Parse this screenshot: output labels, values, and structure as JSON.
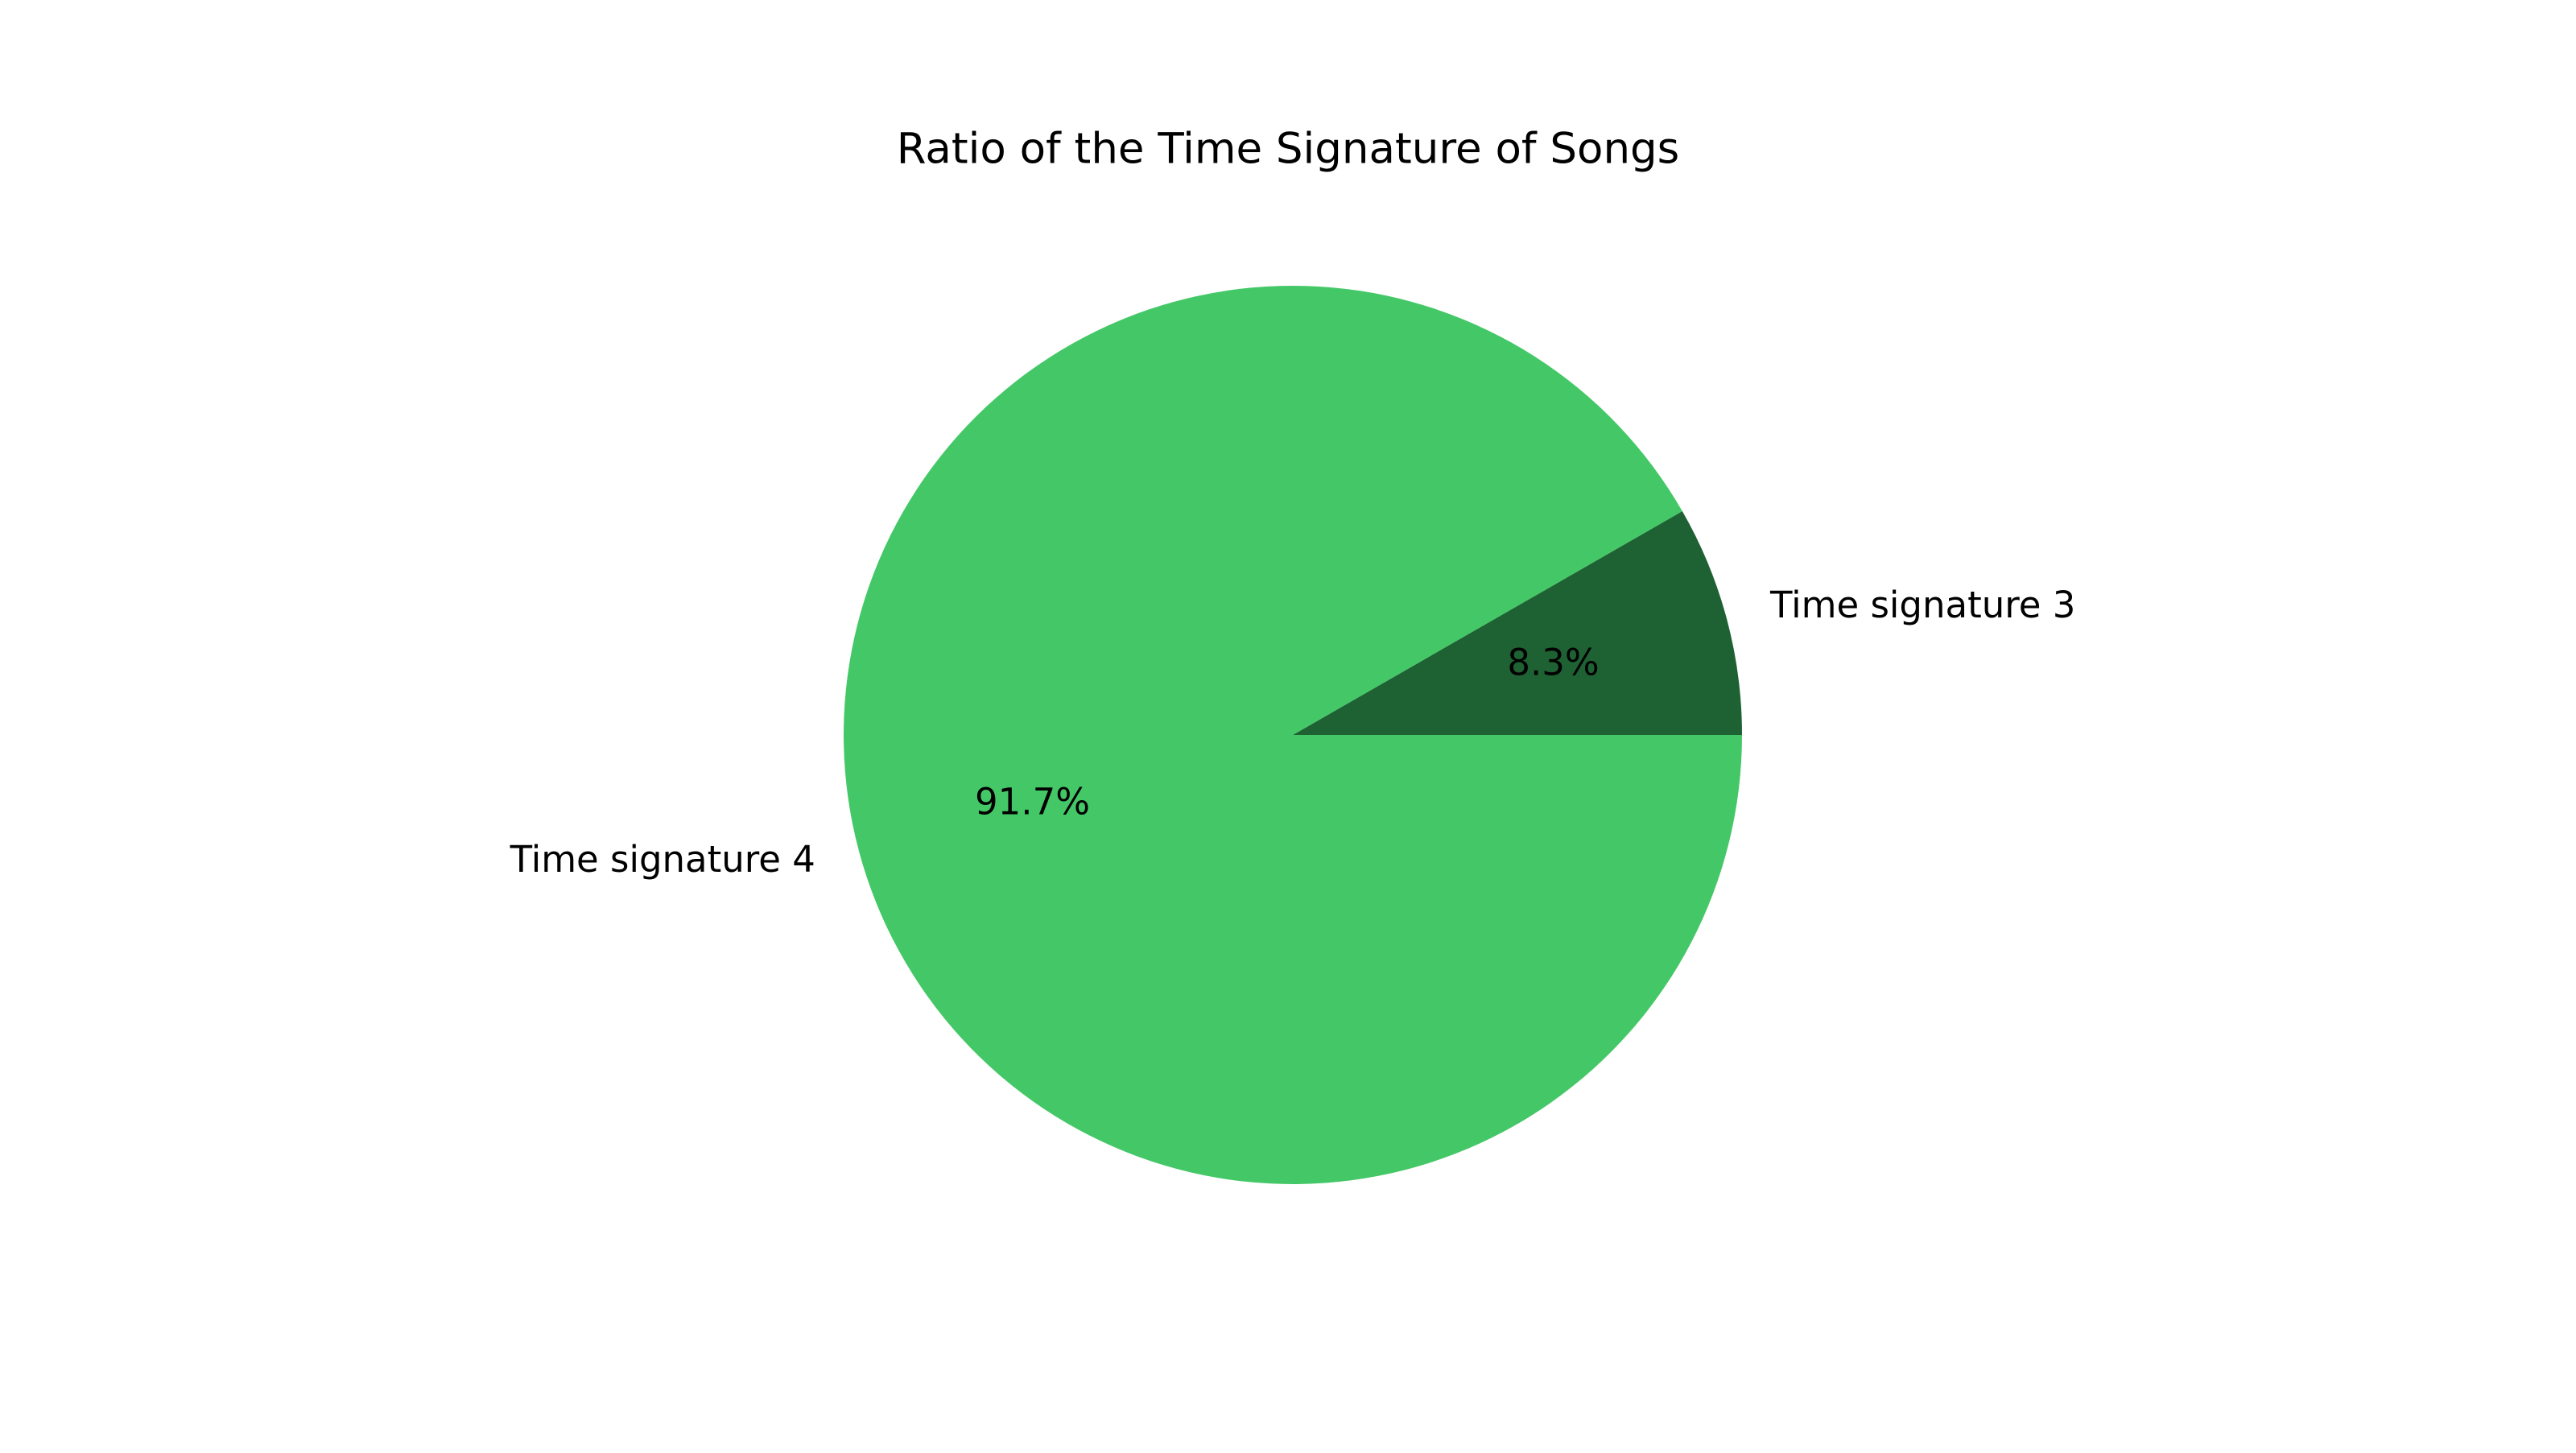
{
  "chart_data": {
    "type": "pie",
    "title": "Ratio of the Time Signature of Songs",
    "slices": [
      {
        "label": "Time signature 3",
        "value": 8.3,
        "pct_label": "8.3%",
        "color": "#1e6133"
      },
      {
        "label": "Time signature 4",
        "value": 91.7,
        "pct_label": "91.7%",
        "color": "#44c867"
      }
    ],
    "start_angle_deg": 0,
    "direction": "counterclockwise"
  }
}
